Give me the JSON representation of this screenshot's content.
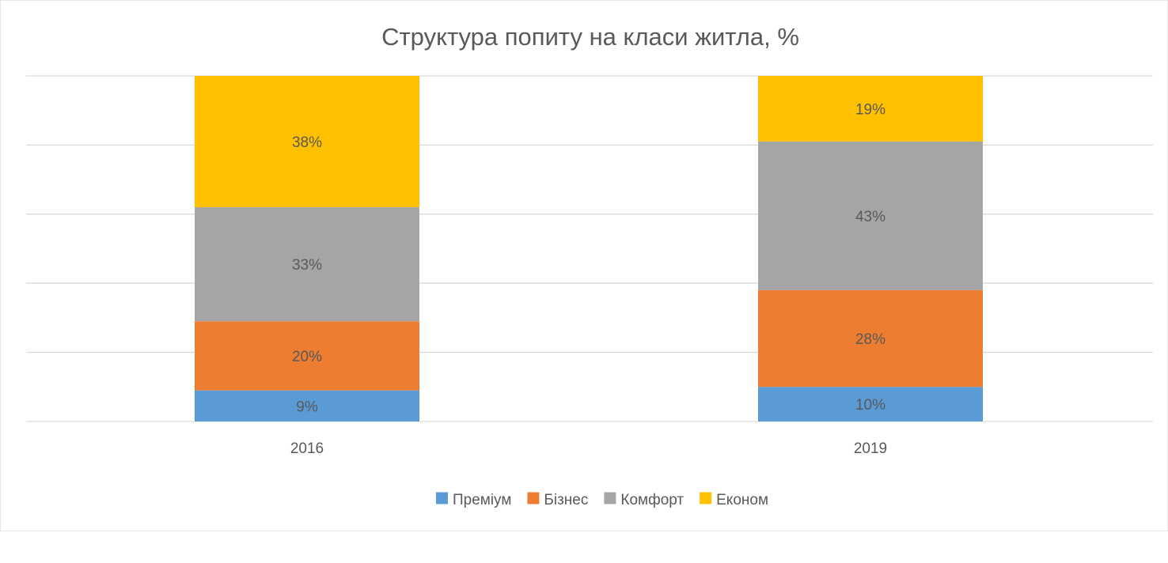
{
  "chart_data": {
    "type": "bar",
    "stacked": true,
    "percent_stacked": true,
    "title": "Структура попиту на класи житла, %",
    "categories": [
      "2016",
      "2019"
    ],
    "series": [
      {
        "name": "Преміум",
        "values": [
          9,
          10
        ],
        "labels": [
          "9%",
          "10%"
        ],
        "color": "#5B9BD5"
      },
      {
        "name": "Бізнес",
        "values": [
          20,
          28
        ],
        "labels": [
          "20%",
          "28%"
        ],
        "color": "#ED7D31"
      },
      {
        "name": "Комфорт",
        "values": [
          33,
          43
        ],
        "labels": [
          "33%",
          "43%"
        ],
        "color": "#A5A5A5"
      },
      {
        "name": "Економ",
        "values": [
          38,
          19
        ],
        "labels": [
          "38%",
          "19%"
        ],
        "color": "#FFC000"
      }
    ],
    "ylim": [
      0,
      100
    ],
    "grid": true,
    "legend": "bottom",
    "xlabel": "",
    "ylabel": ""
  },
  "colors": {
    "gridline": "#d9d9d9",
    "text": "#595959",
    "background": "#ffffff"
  }
}
